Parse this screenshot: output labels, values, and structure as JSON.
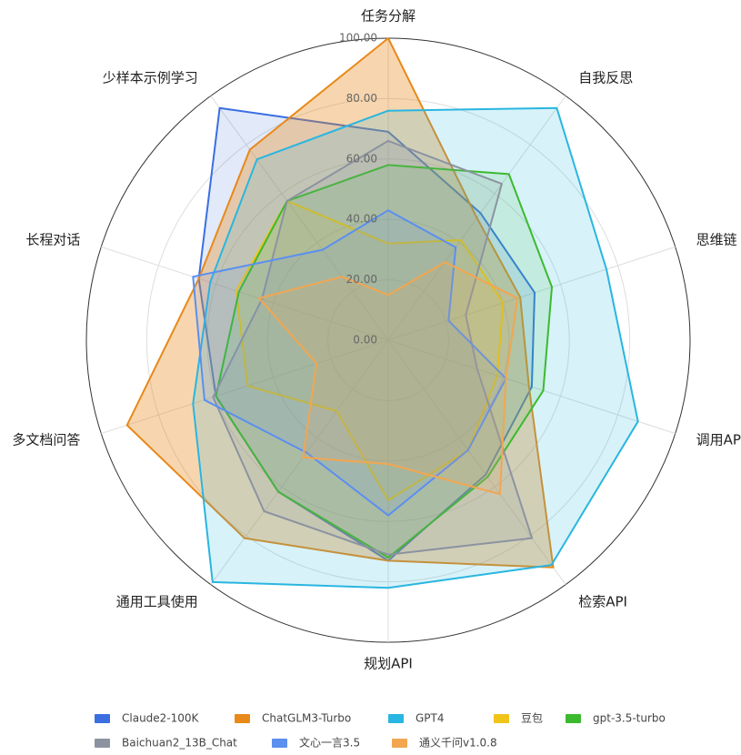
{
  "chart_data": {
    "type": "radar",
    "categories": [
      "任务分解",
      "自我反思",
      "思维链",
      "调用API",
      "检索API",
      "规划API",
      "通用工具使用",
      "多文档问答",
      "长程对话",
      "少样本示例学习"
    ],
    "ylim": [
      0,
      100
    ],
    "yticks": [
      {
        "value": 0,
        "label": "0.00"
      },
      {
        "value": 20,
        "label": "20.00"
      },
      {
        "value": 40,
        "label": "40.00"
      },
      {
        "value": 60,
        "label": "60.00"
      },
      {
        "value": 80,
        "label": "80.00"
      },
      {
        "value": 100,
        "label": "100.00"
      }
    ],
    "grid": true,
    "legend": "bottom",
    "series": [
      {
        "name": "Claude2-100K",
        "color": "#3b6fe0",
        "values": [
          69,
          52,
          51,
          50,
          55,
          73,
          62,
          60,
          66,
          95
        ]
      },
      {
        "name": "ChatGLM3-Turbo",
        "color": "#e8891a",
        "values": [
          100,
          50,
          46,
          49,
          93,
          73,
          81,
          91,
          66,
          78
        ]
      },
      {
        "name": "GPT4",
        "color": "#29b6e0",
        "values": [
          76,
          95,
          76,
          87,
          92,
          82,
          99,
          68,
          62,
          74
        ]
      },
      {
        "name": "豆包",
        "color": "#f0c419",
        "values": [
          32,
          41,
          40,
          38,
          45,
          53,
          29,
          49,
          53,
          57
        ]
      },
      {
        "name": "gpt-3.5-turbo",
        "color": "#3cba2f",
        "values": [
          58,
          68,
          57,
          54,
          56,
          72,
          62,
          60,
          52,
          57
        ]
      },
      {
        "name": "Baichuan2_13B_Chat",
        "color": "#8c93a0",
        "values": [
          66,
          64,
          27,
          31,
          81,
          71,
          70,
          61,
          44,
          57
        ]
      },
      {
        "name": "文心一言3.5",
        "color": "#5b8ff0",
        "values": [
          43,
          38,
          21,
          41,
          45,
          58,
          46,
          64,
          68,
          37
        ]
      },
      {
        "name": "通义千问v1.0.8",
        "color": "#f2a650",
        "values": [
          15,
          32,
          45,
          41,
          63,
          41,
          48,
          25,
          45,
          26
        ]
      }
    ]
  }
}
